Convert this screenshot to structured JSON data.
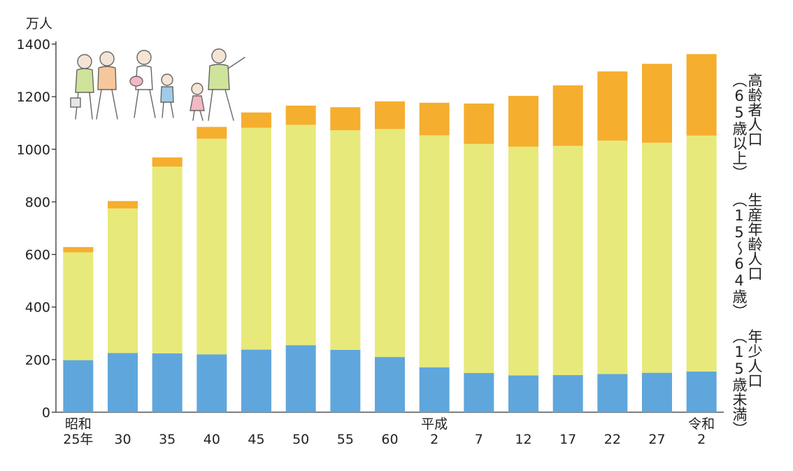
{
  "chart_data": {
    "type": "bar",
    "stacked": true,
    "unit": "万人",
    "ylim": [
      0,
      1400
    ],
    "yticks": [
      0,
      200,
      400,
      600,
      800,
      1000,
      1200,
      1400
    ],
    "categories": [
      {
        "line1": "昭和",
        "line2": "25年"
      },
      {
        "line1": "",
        "line2": "30"
      },
      {
        "line1": "",
        "line2": "35"
      },
      {
        "line1": "",
        "line2": "40"
      },
      {
        "line1": "",
        "line2": "45"
      },
      {
        "line1": "",
        "line2": "50"
      },
      {
        "line1": "",
        "line2": "55"
      },
      {
        "line1": "",
        "line2": "60"
      },
      {
        "line1": "平成",
        "line2": "2"
      },
      {
        "line1": "",
        "line2": "7"
      },
      {
        "line1": "",
        "line2": "12"
      },
      {
        "line1": "",
        "line2": "17"
      },
      {
        "line1": "",
        "line2": "22"
      },
      {
        "line1": "",
        "line2": "27"
      },
      {
        "line1": "令和",
        "line2": "2"
      }
    ],
    "series": [
      {
        "name": "年少人口（15歳未満）",
        "color": "#5ea6dc",
        "values": [
          198,
          225,
          224,
          220,
          238,
          255,
          237,
          210,
          171,
          149,
          140,
          141,
          145,
          150,
          155
        ]
      },
      {
        "name": "生産年齢人口（15～64歳）",
        "color": "#e7e97a",
        "values": [
          410,
          550,
          710,
          820,
          844,
          838,
          835,
          867,
          882,
          871,
          870,
          872,
          888,
          875,
          897
        ]
      },
      {
        "name": "高齢者人口（65歳以上）",
        "color": "#f5ae2e",
        "values": [
          20,
          28,
          35,
          45,
          58,
          73,
          88,
          105,
          124,
          154,
          193,
          230,
          263,
          300,
          310
        ]
      }
    ],
    "series_labels": [
      {
        "line1": "年少人口",
        "line2": "（15歳未満）"
      },
      {
        "line1": "生産年齢人口",
        "line2": "（15～64歳）"
      },
      {
        "line1": "高齢者人口",
        "line2": "（65歳以上）"
      }
    ]
  },
  "illustration": "family-walking-illustration"
}
